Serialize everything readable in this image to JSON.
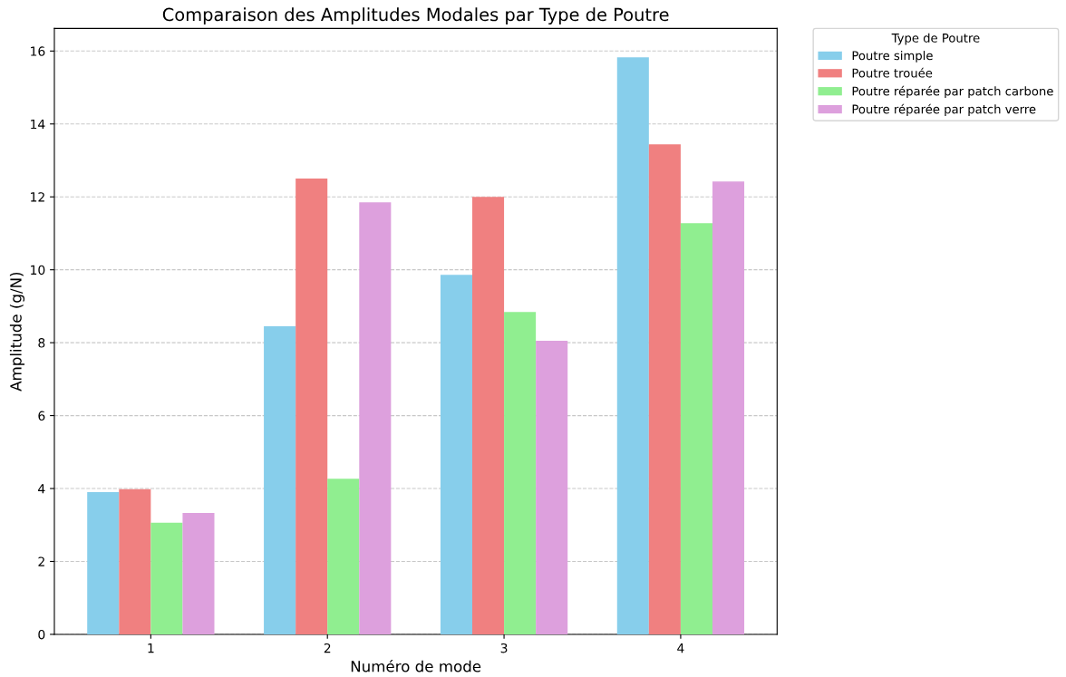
{
  "chart_data": {
    "type": "bar",
    "title": "Comparaison des Amplitudes Modales par Type de Poutre",
    "xlabel": "Numéro de mode",
    "ylabel": "Amplitude (g/N)",
    "legend_title": "Type de Poutre",
    "categories": [
      "1",
      "2",
      "3",
      "4"
    ],
    "series": [
      {
        "name": "Poutre simple",
        "color": "#87ceeb",
        "values": [
          3.9,
          8.45,
          9.86,
          15.83
        ]
      },
      {
        "name": "Poutre trouée",
        "color": "#f08080",
        "values": [
          3.98,
          12.5,
          12.0,
          13.44
        ]
      },
      {
        "name": "Poutre réparée par patch carbone",
        "color": "#90ee90",
        "values": [
          3.06,
          4.27,
          8.84,
          11.28
        ]
      },
      {
        "name": "Poutre réparée par patch verre",
        "color": "#dda0dd",
        "values": [
          3.33,
          11.85,
          8.05,
          12.42
        ]
      }
    ],
    "ylim": [
      0,
      16.62
    ],
    "yticks": [
      0,
      2,
      4,
      6,
      8,
      10,
      12,
      14,
      16
    ],
    "grid": "y",
    "legend": "top right"
  }
}
